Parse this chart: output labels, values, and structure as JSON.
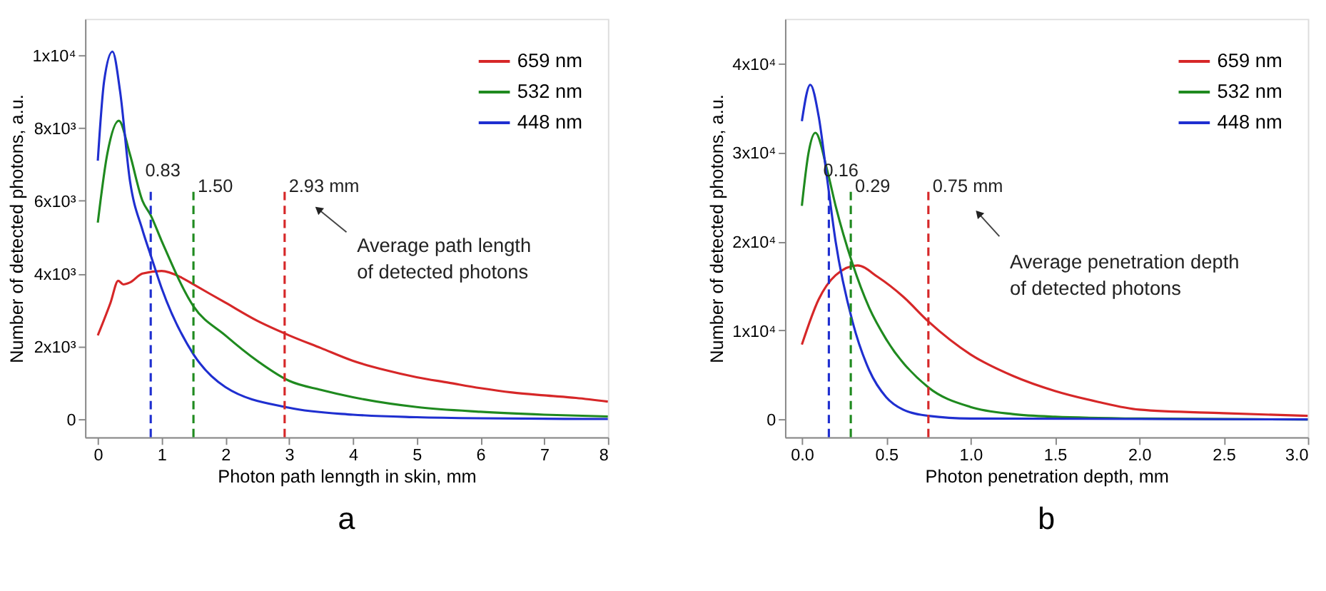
{
  "chart_data": [
    {
      "type": "line",
      "title": "a",
      "xlabel": "Photon path lenngth in skin, mm",
      "ylabel": "Number of detected photons, a.u.",
      "xlim": [
        -0.2,
        8
      ],
      "ylim": [
        -500,
        11000
      ],
      "xticks": [
        0,
        1,
        2,
        3,
        4,
        5,
        6,
        7,
        8
      ],
      "yticks": [
        0,
        {
          "value": 2000,
          "label": "2x10³"
        },
        {
          "value": 4000,
          "label": "4x10³"
        },
        {
          "value": 6000,
          "label": "6x10³"
        },
        {
          "value": 8000,
          "label": "8x10³"
        },
        {
          "value": 10000,
          "label": "1x10⁴"
        }
      ],
      "legend": "top right",
      "grid": false,
      "line_style": "solid",
      "series": [
        {
          "name": "659 nm",
          "color": "#d62728",
          "x": [
            0,
            0.2,
            0.32,
            0.4,
            0.5,
            0.7,
            1.0,
            1.3,
            1.5,
            2,
            2.5,
            3,
            3.5,
            4,
            4.5,
            5,
            5.5,
            6,
            6.5,
            7,
            7.5,
            8
          ],
          "values": [
            2300,
            3200,
            3800,
            3700,
            3750,
            4000,
            4070,
            3900,
            3700,
            3200,
            2700,
            2300,
            1950,
            1600,
            1350,
            1150,
            1000,
            850,
            730,
            650,
            580,
            480
          ]
        },
        {
          "name": "532 nm",
          "color": "#1f8a1f",
          "x": [
            0,
            0.15,
            0.33,
            0.5,
            0.7,
            0.83,
            1.0,
            1.5,
            2,
            2.5,
            3,
            3.5,
            4,
            5,
            6,
            7,
            8
          ],
          "values": [
            5400,
            7300,
            8200,
            7300,
            6000,
            5600,
            4900,
            3100,
            2300,
            1600,
            1050,
            800,
            600,
            330,
            200,
            120,
            70
          ]
        },
        {
          "name": "448 nm",
          "color": "#1f2fd0",
          "x": [
            0,
            0.1,
            0.23,
            0.35,
            0.5,
            0.7,
            0.83,
            1.0,
            1.5,
            2,
            3,
            4,
            5,
            6,
            8
          ],
          "values": [
            7100,
            9300,
            10100,
            9000,
            6600,
            5200,
            4500,
            3600,
            1780,
            880,
            310,
            120,
            50,
            20,
            0
          ]
        }
      ],
      "ref_lines": [
        {
          "axis": "x",
          "value": 0.83,
          "label": "0.83",
          "color": "#1f2fd0",
          "line_style": "dashed"
        },
        {
          "axis": "x",
          "value": 1.5,
          "label": "1.50",
          "color": "#1f8a1f",
          "line_style": "dashed"
        },
        {
          "axis": "x",
          "value": 2.93,
          "label": "2.93 mm",
          "color": "#d62728",
          "line_style": "dashed"
        }
      ],
      "annotations": [
        "Average path length\nof detected photons"
      ]
    },
    {
      "type": "line",
      "title": "b",
      "xlabel": "Photon penetration depth, mm",
      "ylabel": "Number of detected photons, a.u.",
      "xlim": [
        -0.1,
        3.0
      ],
      "ylim": [
        -2000,
        45000
      ],
      "xticks": [
        {
          "value": 0,
          "label": "0.0"
        },
        0.5,
        {
          "value": 1,
          "label": "1.0"
        },
        1.5,
        {
          "value": 2,
          "label": "2.0"
        },
        2.5,
        {
          "value": 3,
          "label": "3.0"
        }
      ],
      "yticks": [
        0,
        {
          "value": 10000,
          "label": "1x10⁴"
        },
        {
          "value": 20000,
          "label": "2x10⁴"
        },
        {
          "value": 30000,
          "label": "3x10⁴"
        },
        {
          "value": 40000,
          "label": "4x10⁴"
        }
      ],
      "legend": "top right",
      "grid": false,
      "line_style": "solid",
      "series": [
        {
          "name": "659 nm",
          "color": "#d62728",
          "x": [
            0,
            0.1,
            0.2,
            0.33,
            0.45,
            0.6,
            0.75,
            1.0,
            1.25,
            1.5,
            1.75,
            2.0,
            2.5,
            3.0
          ],
          "values": [
            8400,
            13500,
            16200,
            17300,
            16000,
            13800,
            11000,
            7300,
            4900,
            3200,
            2000,
            1100,
            700,
            400
          ]
        },
        {
          "name": "532 nm",
          "color": "#1f8a1f",
          "x": [
            0,
            0.04,
            0.08,
            0.15,
            0.2,
            0.3,
            0.4,
            0.5,
            0.75,
            1.0,
            1.25,
            1.5,
            2.0,
            3.0
          ],
          "values": [
            24000,
            30000,
            32200,
            28000,
            24000,
            17500,
            12500,
            9000,
            3600,
            1400,
            600,
            300,
            100,
            0
          ]
        },
        {
          "name": "448 nm",
          "color": "#1f2fd0",
          "x": [
            0,
            0.05,
            0.1,
            0.15,
            0.2,
            0.3,
            0.4,
            0.5,
            0.6,
            0.75,
            1.0,
            3.0
          ],
          "values": [
            33500,
            37600,
            34000,
            27000,
            20000,
            11000,
            5500,
            2500,
            1100,
            400,
            100,
            0
          ]
        }
      ],
      "ref_lines": [
        {
          "axis": "x",
          "value": 0.16,
          "label": "0.16",
          "color": "#1f2fd0",
          "line_style": "dashed"
        },
        {
          "axis": "x",
          "value": 0.29,
          "label": "0.29",
          "color": "#1f8a1f",
          "line_style": "dashed"
        },
        {
          "axis": "x",
          "value": 0.75,
          "label": "0.75 mm",
          "color": "#d62728",
          "line_style": "dashed"
        }
      ],
      "annotations": [
        "Average penetration depth\nof detected photons"
      ]
    }
  ]
}
